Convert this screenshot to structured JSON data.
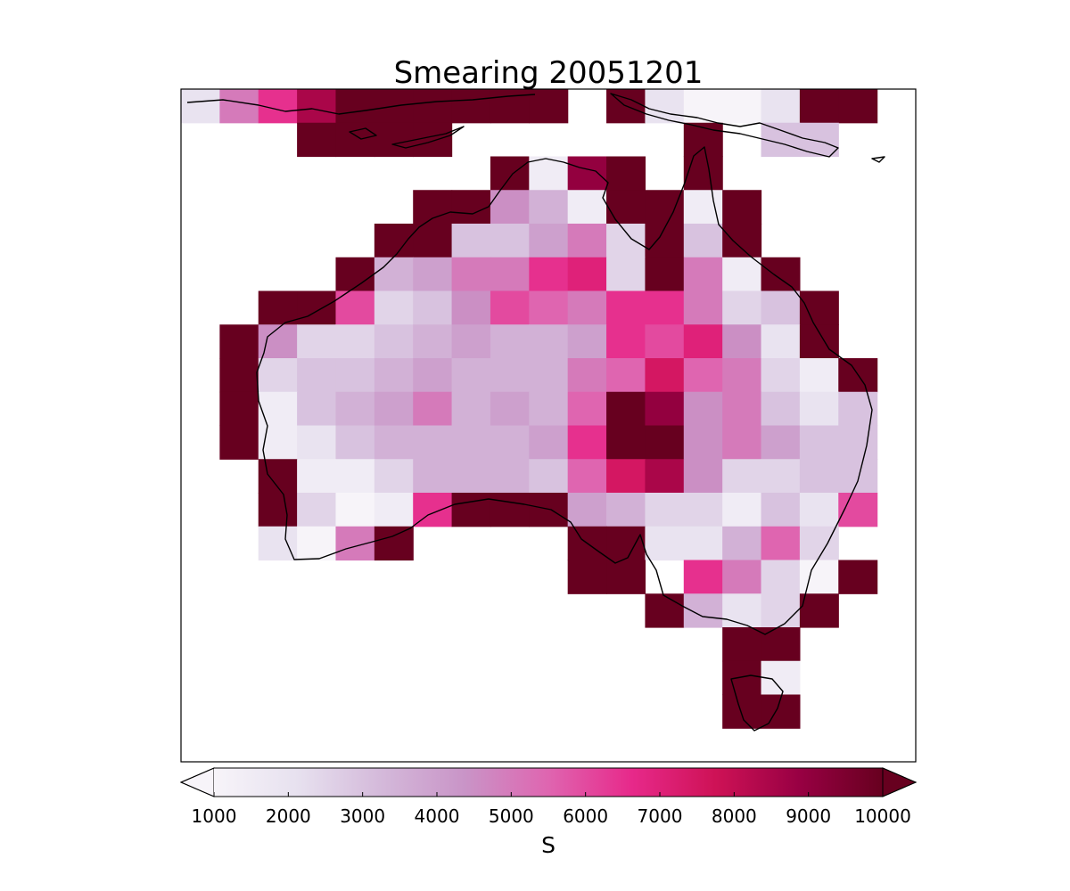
{
  "chart_data": {
    "type": "heatmap",
    "title": "Smearing 20051201",
    "colorbar": {
      "label": "S",
      "min": 1000,
      "max": 10000,
      "ticks": [
        1000,
        2000,
        3000,
        4000,
        5000,
        6000,
        7000,
        8000,
        9000,
        10000
      ],
      "tick_labels": [
        "1000",
        "2000",
        "3000",
        "4000",
        "5000",
        "6000",
        "7000",
        "8000",
        "9000",
        "10000"
      ],
      "extend": "both",
      "orientation": "horizontal",
      "colormap": "PuRd",
      "colors": [
        "#f7f4f9",
        "#e7e1ef",
        "#d4b9da",
        "#c994c7",
        "#df65b0",
        "#e7298a",
        "#ce1256",
        "#980043",
        "#67001f"
      ]
    },
    "grid": {
      "ncols": 19,
      "nrows": 20,
      "no_data": "blank (white)",
      "values": [
        [
          2000,
          5000,
          6500,
          8500,
          10000,
          10000,
          10000,
          10000,
          10000,
          10000,
          null,
          10000,
          2000,
          1000,
          1000,
          2000,
          10000,
          10000,
          null
        ],
        [
          null,
          null,
          null,
          10000,
          10000,
          10000,
          10000,
          null,
          null,
          null,
          null,
          null,
          null,
          10000,
          null,
          3000,
          3000,
          null,
          null
        ],
        [
          null,
          null,
          null,
          null,
          null,
          null,
          null,
          null,
          10000,
          1500,
          9000,
          10000,
          null,
          10000,
          null,
          null,
          null,
          null,
          null
        ],
        [
          null,
          null,
          null,
          null,
          null,
          null,
          10000,
          10000,
          4500,
          3500,
          1500,
          10000,
          10000,
          1500,
          10000,
          null,
          null,
          null,
          null
        ],
        [
          null,
          null,
          null,
          null,
          null,
          10000,
          10000,
          3000,
          3000,
          4000,
          5000,
          2500,
          10000,
          3000,
          10000,
          null,
          null,
          null,
          null
        ],
        [
          null,
          null,
          null,
          null,
          10000,
          3500,
          4000,
          5000,
          5000,
          6500,
          7000,
          2500,
          10000,
          5000,
          1500,
          10000,
          null,
          null,
          null
        ],
        [
          null,
          null,
          10000,
          10000,
          6000,
          2500,
          3000,
          4500,
          6000,
          5500,
          5000,
          6500,
          6500,
          5000,
          2500,
          3000,
          10000,
          null,
          null
        ],
        [
          null,
          10000,
          4500,
          2500,
          2500,
          3000,
          3500,
          4000,
          3500,
          3500,
          4000,
          6500,
          6000,
          7000,
          4500,
          2000,
          10000,
          null,
          null
        ],
        [
          null,
          10000,
          2500,
          3000,
          3000,
          3500,
          4000,
          3500,
          3500,
          3500,
          5000,
          5500,
          7500,
          5500,
          5000,
          2500,
          1500,
          10000,
          null
        ],
        [
          null,
          10000,
          1500,
          3000,
          3500,
          4000,
          5000,
          3500,
          4000,
          3500,
          5500,
          10000,
          9000,
          4500,
          5000,
          3000,
          2000,
          3000,
          null
        ],
        [
          null,
          10000,
          1500,
          2000,
          3000,
          3500,
          3500,
          3500,
          3500,
          4000,
          6500,
          10000,
          10000,
          4500,
          5000,
          4000,
          3000,
          3000,
          null
        ],
        [
          null,
          null,
          10000,
          1500,
          1500,
          2500,
          3500,
          3500,
          3500,
          3000,
          5500,
          7500,
          8500,
          4500,
          2500,
          2500,
          3000,
          3000,
          null
        ],
        [
          null,
          null,
          10000,
          2500,
          1000,
          1500,
          6500,
          10000,
          10000,
          10000,
          4000,
          3500,
          2500,
          2500,
          1500,
          3000,
          2000,
          6000,
          null
        ],
        [
          null,
          null,
          2000,
          1000,
          5000,
          10000,
          null,
          null,
          null,
          null,
          10000,
          10000,
          2000,
          2000,
          3500,
          5500,
          2500,
          null,
          null
        ],
        [
          null,
          null,
          null,
          null,
          null,
          null,
          null,
          null,
          null,
          null,
          10000,
          10000,
          null,
          6500,
          5000,
          2500,
          1000,
          10000,
          null
        ],
        [
          null,
          null,
          null,
          null,
          null,
          null,
          null,
          null,
          null,
          null,
          null,
          null,
          10000,
          3500,
          2000,
          2500,
          10000,
          null,
          null
        ],
        [
          null,
          null,
          null,
          null,
          null,
          null,
          null,
          null,
          null,
          null,
          null,
          null,
          null,
          null,
          10000,
          10000,
          null,
          null,
          null
        ],
        [
          null,
          null,
          null,
          null,
          null,
          null,
          null,
          null,
          null,
          null,
          null,
          null,
          null,
          null,
          10000,
          1500,
          null,
          null,
          null
        ],
        [
          null,
          null,
          null,
          null,
          null,
          null,
          null,
          null,
          null,
          null,
          null,
          null,
          null,
          null,
          10000,
          10000,
          null,
          null,
          null
        ],
        [
          null,
          null,
          null,
          null,
          null,
          null,
          null,
          null,
          null,
          null,
          null,
          null,
          null,
          null,
          null,
          null,
          null,
          null,
          null
        ]
      ]
    },
    "overlay": "coastline",
    "axes": {
      "ticks_shown": false,
      "grid": false
    }
  }
}
